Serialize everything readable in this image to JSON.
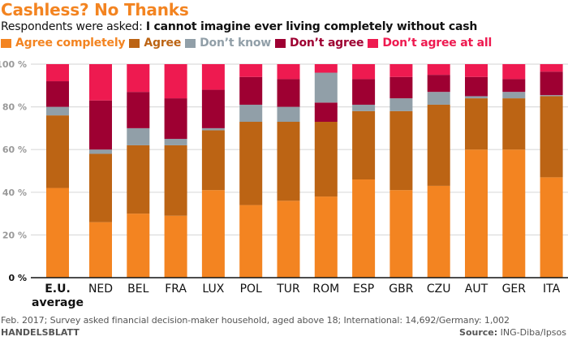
{
  "header": {
    "title": "Cashless? No Thanks",
    "subtitle_prefix": "Respondents were asked: ",
    "subtitle_question": "I cannot imagine ever living completely without cash"
  },
  "footer": {
    "note": "Feb. 2017; Survey asked financial decision-maker household, aged above 18; International: 14,692/Germany: 1,002",
    "brand": "HANDELSBLATT",
    "source_label": "Source:",
    "source_value": " ING-Diba/Ipsos"
  },
  "chart_data": {
    "type": "bar",
    "stacked": true,
    "title": "Cashless? No Thanks",
    "subtitle": "Respondents were asked: I cannot imagine ever living completely without cash",
    "xlabel": "",
    "ylabel": "",
    "ylim": [
      0,
      100
    ],
    "yticks": [
      0,
      20,
      40,
      60,
      80,
      100
    ],
    "ytick_labels": [
      "0 %",
      "20 %",
      "40 %",
      "60 %",
      "80 %",
      "100 %"
    ],
    "grid": true,
    "legend_position": "top-left",
    "categories": [
      "E.U. average",
      "NED",
      "BEL",
      "FRA",
      "LUX",
      "POL",
      "TUR",
      "ROM",
      "ESP",
      "GBR",
      "CZU",
      "AUT",
      "GER",
      "ITA"
    ],
    "category_labels": [
      [
        "E.U.",
        "average"
      ],
      [
        "NED"
      ],
      [
        "BEL"
      ],
      [
        "FRA"
      ],
      [
        "LUX"
      ],
      [
        "POL"
      ],
      [
        "TUR"
      ],
      [
        "ROM"
      ],
      [
        "ESP"
      ],
      [
        "GBR"
      ],
      [
        "CZU"
      ],
      [
        "AUT"
      ],
      [
        "GER"
      ],
      [
        "ITA"
      ]
    ],
    "series": [
      {
        "name": "Agree completely",
        "color": "#F38421",
        "values": [
          42,
          26,
          30,
          29,
          41,
          34,
          36,
          38,
          46,
          41,
          43,
          60,
          60,
          47
        ]
      },
      {
        "name": "Agree",
        "color": "#BC6414",
        "values": [
          34,
          32,
          32,
          33,
          28,
          39,
          37,
          35,
          32,
          37,
          38,
          24,
          24,
          38
        ]
      },
      {
        "name": "Don’t know",
        "color": "#919FA8",
        "values": [
          4,
          2,
          8,
          3,
          1,
          8,
          7,
          14,
          3,
          6,
          6,
          1,
          3,
          0.5
        ]
      },
      {
        "name": "Don’t agree",
        "color": "#9E0032",
        "values": [
          12,
          23,
          17,
          19,
          18,
          13,
          13,
          9,
          12,
          10,
          8,
          9,
          6,
          11
        ]
      },
      {
        "name": "Don’t agree at all",
        "color": "#EE1A50",
        "values": [
          8,
          17,
          13,
          16,
          12,
          6,
          7,
          4,
          7,
          6,
          5,
          6,
          7,
          3.5
        ]
      }
    ],
    "stack_order_overrides": {
      "ROM": [
        0,
        1,
        3,
        2,
        4
      ]
    }
  }
}
